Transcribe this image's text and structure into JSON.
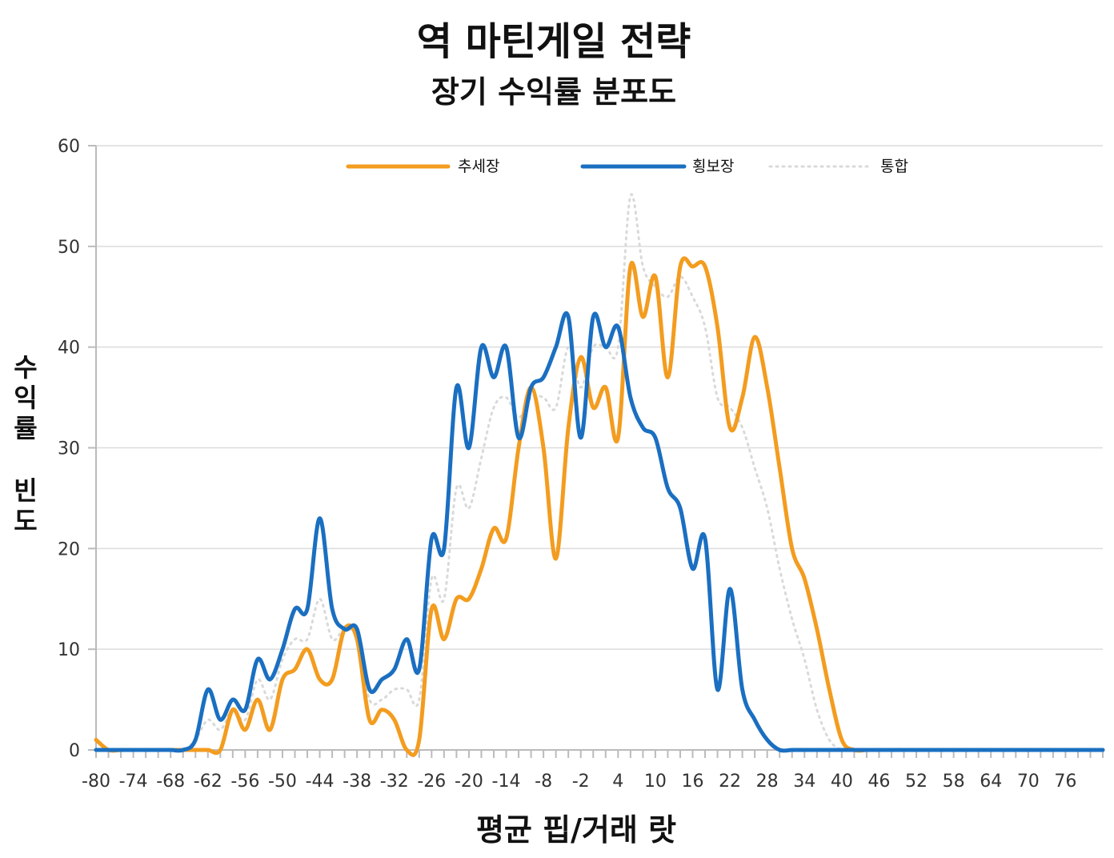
{
  "chart_data": {
    "type": "line",
    "title": "역 마틴게일 전략",
    "subtitle": "장기 수익률 분포도",
    "xlabel": "평균 핍/거래 랏",
    "ylabel": "수익률 빈도",
    "xlim": [
      -80,
      82
    ],
    "ylim": [
      0,
      60
    ],
    "yticks": [
      0,
      10,
      20,
      30,
      40,
      50,
      60
    ],
    "xticks": [
      -80,
      -74,
      -68,
      -62,
      -56,
      -50,
      -44,
      -38,
      -32,
      -26,
      -20,
      -14,
      -8,
      -2,
      4,
      10,
      16,
      22,
      28,
      34,
      40,
      46,
      52,
      58,
      64,
      70,
      76
    ],
    "grid": true,
    "legend_position": "top",
    "series": [
      {
        "name": "추세장",
        "color": "#f39c1f",
        "style": "solid",
        "x": [
          -80,
          -78,
          -76,
          -74,
          -72,
          -70,
          -68,
          -66,
          -64,
          -62,
          -60,
          -58,
          -56,
          -54,
          -52,
          -50,
          -48,
          -46,
          -44,
          -42,
          -40,
          -38,
          -36,
          -34,
          -32,
          -30,
          -28,
          -26,
          -24,
          -22,
          -20,
          -18,
          -16,
          -14,
          -12,
          -10,
          -8,
          -6,
          -4,
          -2,
          0,
          2,
          4,
          6,
          8,
          10,
          12,
          14,
          16,
          18,
          20,
          22,
          24,
          26,
          28,
          30,
          32,
          34,
          36,
          38,
          40,
          42,
          44,
          46,
          48,
          50,
          52,
          54,
          56,
          58,
          60,
          62,
          64,
          66,
          68,
          70,
          72,
          74,
          76,
          78,
          80,
          82
        ],
        "values": [
          1,
          0,
          0,
          0,
          0,
          0,
          0,
          0,
          0,
          0,
          0,
          4,
          2,
          5,
          2,
          7,
          8,
          10,
          7,
          7,
          12,
          11,
          3,
          4,
          3,
          0,
          1,
          14,
          11,
          15,
          15,
          18,
          22,
          21,
          30,
          36,
          30,
          19,
          32,
          39,
          34,
          36,
          31,
          48,
          43,
          47,
          37,
          48,
          48,
          48,
          42,
          32,
          35,
          41,
          36,
          28,
          20,
          17,
          12,
          6,
          1,
          0,
          0,
          0,
          0,
          0,
          0,
          0,
          0,
          0,
          0,
          0,
          0,
          0,
          0,
          0,
          0,
          0,
          0,
          0,
          0,
          0
        ]
      },
      {
        "name": "횡보장",
        "color": "#1a6fc1",
        "style": "solid",
        "x": [
          -80,
          -78,
          -76,
          -74,
          -72,
          -70,
          -68,
          -66,
          -64,
          -62,
          -60,
          -58,
          -56,
          -54,
          -52,
          -50,
          -48,
          -46,
          -44,
          -42,
          -40,
          -38,
          -36,
          -34,
          -32,
          -30,
          -28,
          -26,
          -24,
          -22,
          -20,
          -18,
          -16,
          -14,
          -12,
          -10,
          -8,
          -6,
          -4,
          -2,
          0,
          2,
          4,
          6,
          8,
          10,
          12,
          14,
          16,
          18,
          20,
          22,
          24,
          26,
          28,
          30,
          32,
          34,
          36,
          38,
          40,
          42,
          44,
          46,
          48,
          50,
          52,
          54,
          56,
          58,
          60,
          62,
          64,
          66,
          68,
          70,
          72,
          74,
          76,
          78,
          80,
          82
        ],
        "values": [
          0,
          0,
          0,
          0,
          0,
          0,
          0,
          0,
          1,
          6,
          3,
          5,
          4,
          9,
          7,
          10,
          14,
          14,
          23,
          14,
          12,
          12,
          6,
          7,
          8,
          11,
          8,
          21,
          20,
          36,
          30,
          40,
          37,
          40,
          31,
          36,
          37,
          40,
          43,
          31,
          43,
          40,
          42,
          35,
          32,
          31,
          26,
          24,
          18,
          21,
          6,
          16,
          6,
          3,
          1,
          0,
          0,
          0,
          0,
          0,
          0,
          0,
          0,
          0,
          0,
          0,
          0,
          0,
          0,
          0,
          0,
          0,
          0,
          0,
          0,
          0,
          0,
          0,
          0,
          0,
          0,
          0
        ]
      },
      {
        "name": "통합",
        "color": "#d9d9d9",
        "style": "dotted",
        "x": [
          -80,
          -78,
          -76,
          -74,
          -72,
          -70,
          -68,
          -66,
          -64,
          -62,
          -60,
          -58,
          -56,
          -54,
          -52,
          -50,
          -48,
          -46,
          -44,
          -42,
          -40,
          -38,
          -36,
          -34,
          -32,
          -30,
          -28,
          -26,
          -24,
          -22,
          -20,
          -18,
          -16,
          -14,
          -12,
          -10,
          -8,
          -6,
          -4,
          -2,
          0,
          2,
          4,
          6,
          8,
          10,
          12,
          14,
          16,
          18,
          20,
          22,
          24,
          26,
          28,
          30,
          32,
          34,
          36,
          38,
          40,
          42,
          44,
          46,
          48,
          50,
          52,
          54,
          56,
          58,
          60,
          62,
          64,
          66,
          68,
          70,
          72,
          74,
          76,
          78,
          80,
          82
        ],
        "values": [
          0,
          0,
          0,
          0,
          0,
          0,
          0,
          0,
          1,
          3,
          2,
          4,
          3,
          7,
          5,
          9,
          11,
          11,
          15,
          11,
          12,
          11,
          5,
          5,
          6,
          6,
          5,
          17,
          15,
          26,
          24,
          29,
          34,
          35,
          33,
          35,
          35,
          34,
          40,
          36,
          40,
          40,
          40,
          55,
          48,
          46,
          45,
          47,
          45,
          42,
          35,
          34,
          32,
          28,
          24,
          18,
          13,
          9,
          4,
          1,
          0,
          0,
          0,
          0,
          0,
          0,
          0,
          0,
          0,
          0,
          0,
          0,
          0,
          0,
          0,
          0,
          0,
          0,
          0,
          0,
          0,
          0
        ]
      }
    ]
  }
}
